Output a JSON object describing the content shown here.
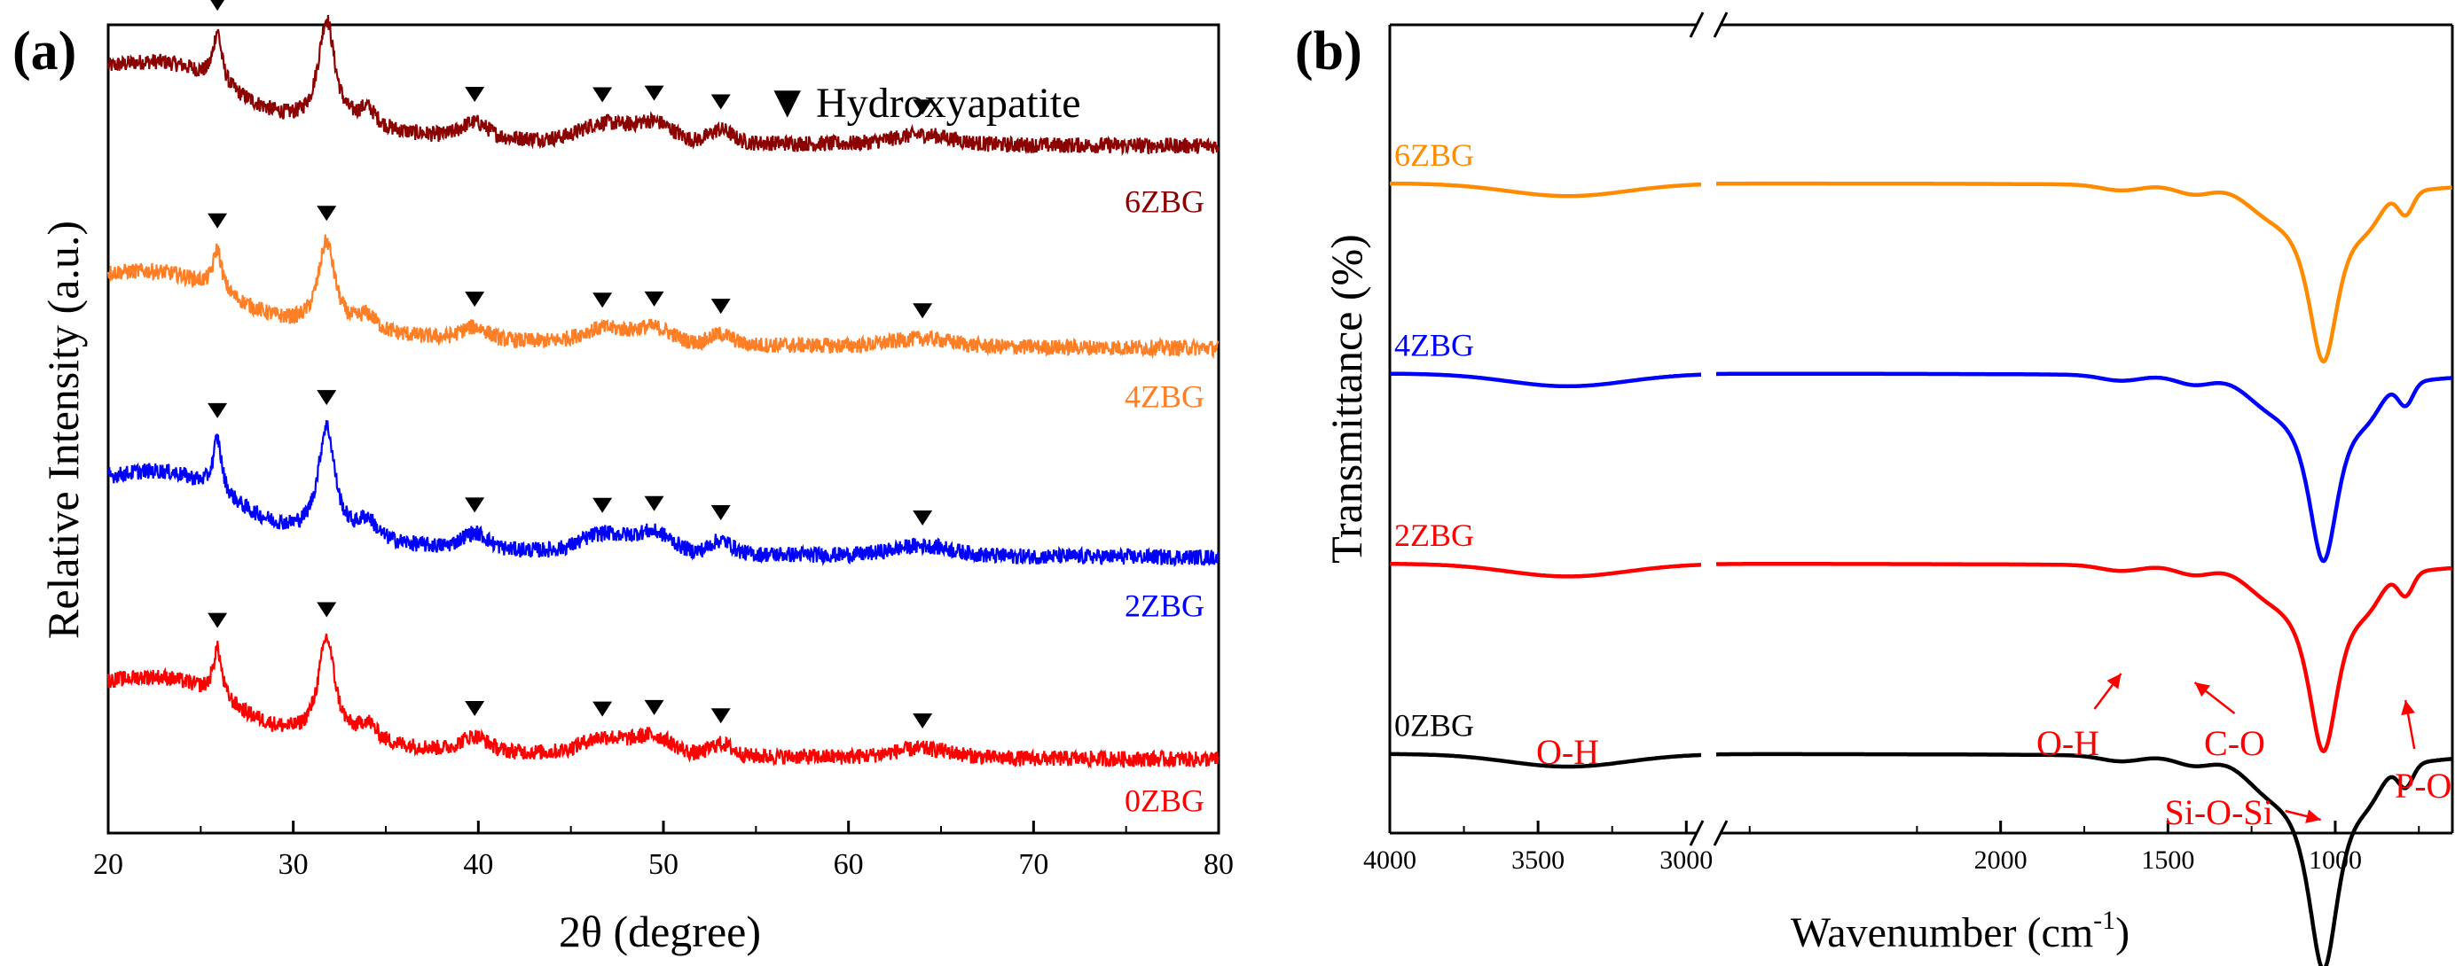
{
  "chart_data": [
    {
      "panel_label": "(a)",
      "type": "line",
      "xlabel": "2θ (degree)",
      "ylabel": "Relative Intensity (a.u.)",
      "xlim": [
        20,
        80
      ],
      "xticks": [
        20,
        30,
        40,
        50,
        60,
        70,
        80
      ],
      "legend_symbol": "▼",
      "legend_label": "Hydroxyapatite",
      "legend_position": "top-right",
      "baseline": {
        "0ZBG": 1.0,
        "2ZBG": 3.8,
        "4ZBG": 6.7,
        "6ZBG": 9.5
      },
      "peak_markers": {
        "6ZBG": [
          25.9,
          31.8,
          39.8,
          46.7,
          49.5,
          53.1,
          64.0
        ],
        "4ZBG": [
          25.9,
          31.8,
          39.8,
          46.7,
          49.5,
          53.1,
          64.0
        ],
        "2ZBG": [
          25.9,
          31.8,
          39.8,
          46.7,
          49.5,
          53.1,
          64.0
        ],
        "0ZBG": [
          25.9,
          31.8,
          39.8,
          46.7,
          49.5,
          53.1,
          64.0
        ]
      },
      "series": [
        {
          "name": "6ZBG",
          "color": "#8b0000"
        },
        {
          "name": "4ZBG",
          "color": "#ff7f27"
        },
        {
          "name": "2ZBG",
          "color": "#0000ff"
        },
        {
          "name": "0ZBG",
          "color": "#ff0000"
        }
      ]
    },
    {
      "panel_label": "(b)",
      "type": "line",
      "xlabel": "Wavenumber (cm",
      "xlabel_sup": "-1",
      "xlabel_close": ")",
      "ylabel": "Transmittance (%)",
      "xlim": [
        4000,
        650
      ],
      "axis_break": [
        2950,
        2850
      ],
      "xticks": [
        4000,
        3500,
        3000,
        2000,
        1500,
        1000
      ],
      "baseline": {
        "0ZBG": 1.0,
        "2ZBG": 3.4,
        "4ZBG": 5.8,
        "6ZBG": 8.2
      },
      "series": [
        {
          "name": "6ZBG",
          "color": "#ff8c00"
        },
        {
          "name": "4ZBG",
          "color": "#0000ff"
        },
        {
          "name": "2ZBG",
          "color": "#ff0000"
        },
        {
          "name": "0ZBG",
          "color": "#000000"
        }
      ],
      "annotations": [
        {
          "text": "O-H",
          "wavenumber": 3400
        },
        {
          "text": "O-H",
          "wavenumber": 1640
        },
        {
          "text": "C-O",
          "wavenumber": 1420
        },
        {
          "text": "Si-O-Si",
          "wavenumber": 1030
        },
        {
          "text": "P-O",
          "wavenumber": 790
        }
      ],
      "annotation_color": "#ff0000"
    }
  ]
}
